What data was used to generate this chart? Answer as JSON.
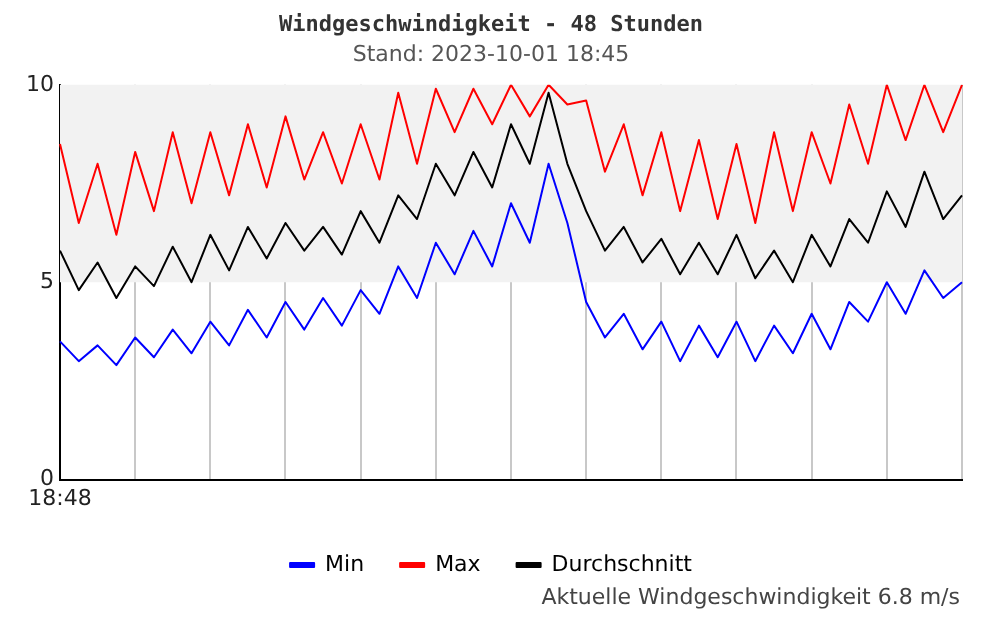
{
  "chart_data": {
    "type": "line",
    "title": "Windgeschwindigkeit - 48 Stunden",
    "subtitle": "Stand: 2023-10-01 18:45",
    "categories": [
      "18:48",
      null,
      null,
      null,
      null,
      null,
      null,
      null,
      null,
      null,
      null,
      null,
      null,
      null,
      null,
      null,
      null,
      null,
      null,
      null,
      null,
      null,
      null,
      null,
      null,
      null,
      null,
      null,
      null,
      null,
      null,
      null,
      null,
      null,
      null,
      null,
      null,
      null,
      null,
      null,
      null,
      null,
      null,
      null,
      null,
      null,
      null,
      null,
      null
    ],
    "ylim": [
      0,
      10
    ],
    "yticks": [
      0,
      5,
      10
    ],
    "grid": "x",
    "legend": "bottom",
    "marker": "none",
    "line_style": "solid",
    "bands": [
      {
        "axis": "y",
        "from": 5,
        "to": 10,
        "color": "#f2f2f2"
      }
    ],
    "annotations": [
      "Aktuelle Windgeschwindigkeit 6.8 m/s"
    ],
    "series": [
      {
        "name": "Min",
        "color": "#0000ff",
        "values": [
          3.5,
          3.0,
          3.4,
          2.9,
          3.6,
          3.1,
          3.8,
          3.2,
          4.0,
          3.4,
          4.3,
          3.6,
          4.5,
          3.8,
          4.6,
          3.9,
          4.8,
          4.2,
          5.4,
          4.6,
          6.0,
          5.2,
          6.3,
          5.4,
          7.0,
          6.0,
          8.0,
          6.5,
          4.5,
          3.6,
          4.2,
          3.3,
          4.0,
          3.0,
          3.9,
          3.1,
          4.0,
          3.0,
          3.9,
          3.2,
          4.2,
          3.3,
          4.5,
          4.0,
          5.0,
          4.2,
          5.3,
          4.6,
          5.0
        ]
      },
      {
        "name": "Max",
        "color": "#ff0000",
        "values": [
          8.5,
          6.5,
          8.0,
          6.2,
          8.3,
          6.8,
          8.8,
          7.0,
          8.8,
          7.2,
          9.0,
          7.4,
          9.2,
          7.6,
          8.8,
          7.5,
          9.0,
          7.6,
          9.8,
          8.0,
          9.9,
          8.8,
          9.9,
          9.0,
          10,
          9.2,
          10,
          9.5,
          9.6,
          7.8,
          9.0,
          7.2,
          8.8,
          6.8,
          8.6,
          6.6,
          8.5,
          6.5,
          8.8,
          6.8,
          8.8,
          7.5,
          9.5,
          8.0,
          10,
          8.6,
          10,
          8.8,
          10
        ]
      },
      {
        "name": "Durchschnitt",
        "color": "#000000",
        "values": [
          5.8,
          4.8,
          5.5,
          4.6,
          5.4,
          4.9,
          5.9,
          5.0,
          6.2,
          5.3,
          6.4,
          5.6,
          6.5,
          5.8,
          6.4,
          5.7,
          6.8,
          6.0,
          7.2,
          6.6,
          8.0,
          7.2,
          8.3,
          7.4,
          9.0,
          8.0,
          9.8,
          8.0,
          6.8,
          5.8,
          6.4,
          5.5,
          6.1,
          5.2,
          6.0,
          5.2,
          6.2,
          5.1,
          5.8,
          5.0,
          6.2,
          5.4,
          6.6,
          6.0,
          7.3,
          6.4,
          7.8,
          6.6,
          7.2
        ]
      }
    ]
  }
}
